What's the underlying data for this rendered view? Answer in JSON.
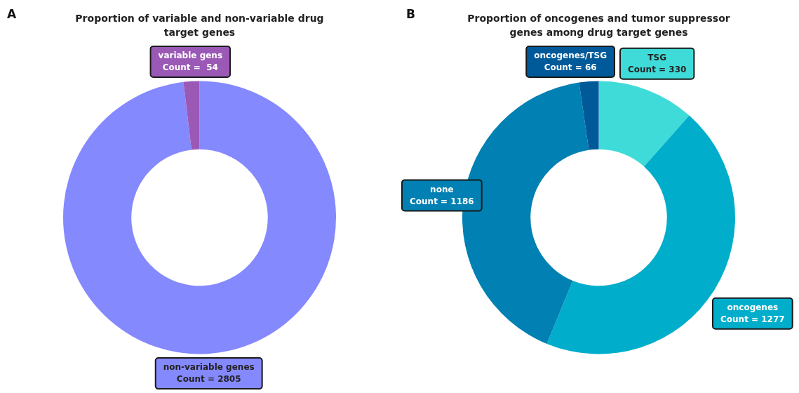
{
  "chart_data": [
    {
      "type": "donut",
      "title": "Proportion of  variable and non-variable drug target genes",
      "annotations": [
        "A"
      ],
      "categories": [
        "non-variable genes",
        "variable gens"
      ],
      "values": [
        2805,
        54
      ],
      "colors": [
        "#8589fe",
        "#9b59b6"
      ],
      "value_labels": [
        "Count = 2805",
        "Count =  54"
      ]
    },
    {
      "type": "donut",
      "title": "Proportion of  oncogenes and tumor suppressor genes among drug target genes",
      "annotations": [
        "B"
      ],
      "categories": [
        "TSG",
        "oncogenes",
        "none",
        "oncogenes/TSG"
      ],
      "values": [
        330,
        1277,
        1186,
        66
      ],
      "colors": [
        "#3fdbd8",
        "#00aecb",
        "#0080b3",
        "#005a9a"
      ],
      "value_labels": [
        "Count = 330",
        "Count = 1277",
        "Count = 1186",
        "Count = 66"
      ]
    }
  ]
}
